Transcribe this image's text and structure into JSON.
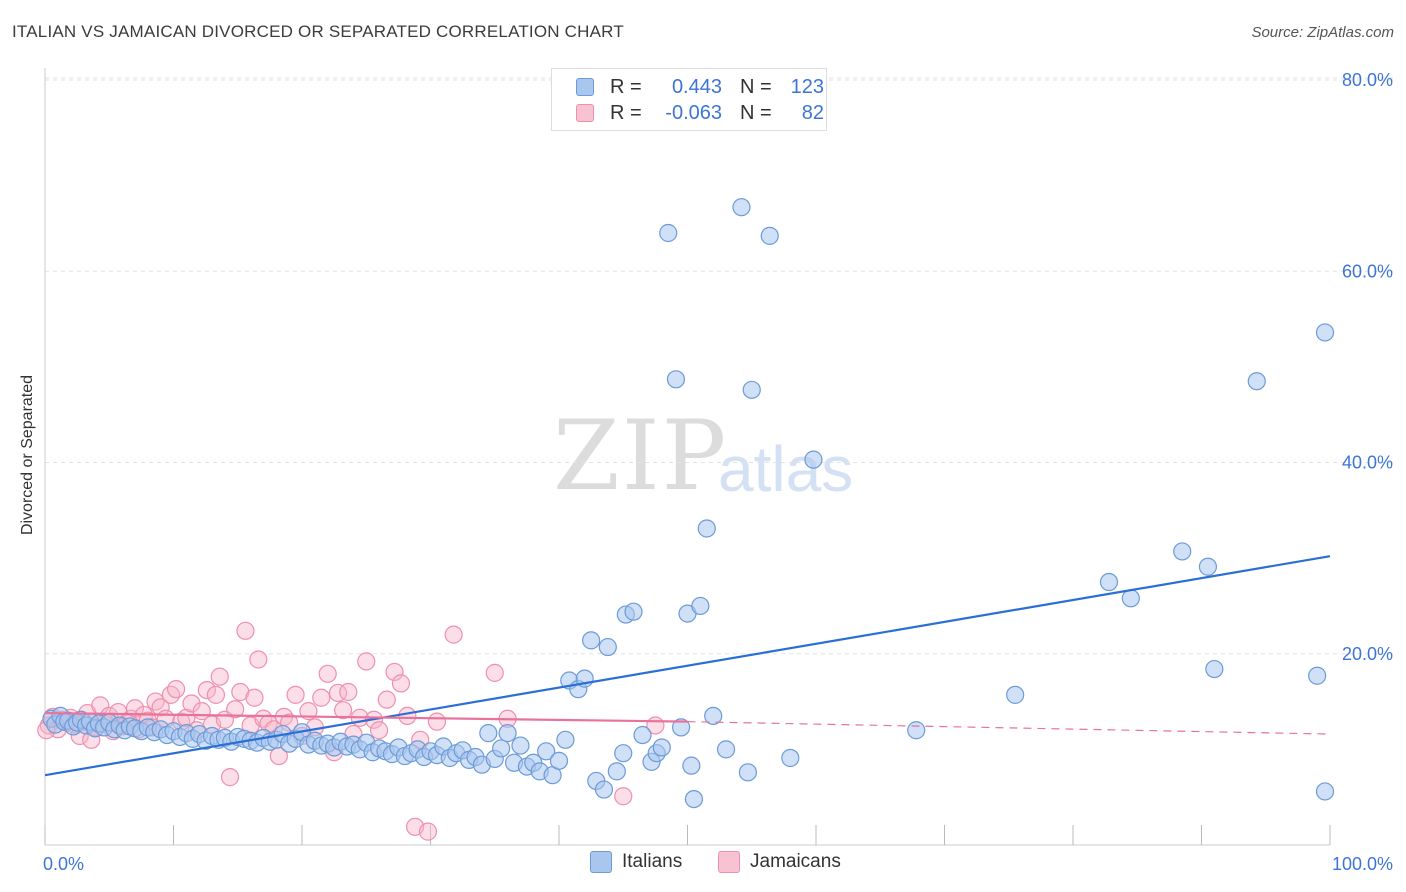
{
  "title": "ITALIAN VS JAMAICAN DIVORCED OR SEPARATED CORRELATION CHART",
  "source": "Source: ZipAtlas.com",
  "watermark": {
    "zip": "ZIP",
    "atlas": "atlas"
  },
  "legend_top": {
    "rows": [
      {
        "r_label": "R =",
        "r_value": "0.443",
        "n_label": "N =",
        "n_value": "123"
      },
      {
        "r_label": "R =",
        "r_value": "-0.063",
        "n_label": "N =",
        "n_value": "82"
      }
    ]
  },
  "legend_bottom": {
    "italians": "Italians",
    "jamaicans": "Jamaicans"
  },
  "colors": {
    "italians_fill": "#a9c6ee",
    "italians_stroke": "#6c9bd8",
    "italians_line": "#2b6fd6",
    "jamaicans_fill": "#f7b6ca",
    "jamaicans_stroke": "#ef8fae",
    "jamaicans_line": "#e8729b",
    "tick_label": "#3d75d6",
    "grid": "#e2e2e2"
  },
  "chart_data": {
    "type": "scatter",
    "title": "ITALIAN VS JAMAICAN DIVORCED OR SEPARATED CORRELATION CHART",
    "xlabel": "",
    "ylabel": "Divorced or Separated",
    "xlim": [
      0,
      100
    ],
    "ylim": [
      0,
      80
    ],
    "x_tick_labels": [
      "0.0%",
      "100.0%"
    ],
    "y_ticks": [
      20,
      40,
      60,
      80
    ],
    "y_tick_labels": [
      "20.0%",
      "40.0%",
      "60.0%",
      "80.0%"
    ],
    "grid": true,
    "legend": "top-center",
    "series": [
      {
        "name": "Italians",
        "r": 0.443,
        "n": 123,
        "trend": {
          "x": [
            0,
            100
          ],
          "y": [
            7.3,
            30.2
          ]
        },
        "points": [
          [
            0.5,
            13.2
          ],
          [
            0.8,
            12.6
          ],
          [
            1.2,
            13.5
          ],
          [
            1.5,
            12.9
          ],
          [
            1.8,
            13.0
          ],
          [
            2.2,
            12.4
          ],
          [
            2.5,
            12.8
          ],
          [
            2.8,
            13.1
          ],
          [
            3.2,
            12.5
          ],
          [
            3.5,
            12.9
          ],
          [
            3.9,
            12.2
          ],
          [
            4.2,
            12.7
          ],
          [
            4.6,
            12.3
          ],
          [
            5.0,
            12.8
          ],
          [
            5.4,
            12.1
          ],
          [
            5.8,
            12.5
          ],
          [
            6.2,
            12.0
          ],
          [
            6.6,
            12.4
          ],
          [
            7.0,
            12.2
          ],
          [
            7.5,
            11.9
          ],
          [
            8.0,
            12.3
          ],
          [
            8.5,
            11.8
          ],
          [
            9.0,
            12.1
          ],
          [
            9.5,
            11.5
          ],
          [
            10.0,
            11.9
          ],
          [
            10.5,
            11.3
          ],
          [
            11.0,
            11.7
          ],
          [
            11.5,
            11.1
          ],
          [
            12.0,
            11.6
          ],
          [
            12.5,
            10.9
          ],
          [
            13.0,
            11.4
          ],
          [
            13.5,
            11.0
          ],
          [
            14.0,
            11.2
          ],
          [
            14.5,
            10.8
          ],
          [
            15.0,
            11.3
          ],
          [
            15.5,
            11.1
          ],
          [
            16.0,
            10.9
          ],
          [
            16.5,
            10.7
          ],
          [
            17.0,
            11.2
          ],
          [
            17.5,
            10.8
          ],
          [
            18.0,
            11.0
          ],
          [
            18.5,
            11.6
          ],
          [
            19.0,
            10.6
          ],
          [
            19.5,
            11.1
          ],
          [
            20.0,
            11.8
          ],
          [
            20.5,
            10.5
          ],
          [
            21.0,
            10.9
          ],
          [
            21.5,
            10.4
          ],
          [
            22.0,
            10.6
          ],
          [
            22.5,
            10.2
          ],
          [
            23.0,
            10.8
          ],
          [
            23.5,
            10.3
          ],
          [
            24.0,
            10.5
          ],
          [
            24.5,
            10.0
          ],
          [
            25.0,
            10.7
          ],
          [
            25.5,
            9.7
          ],
          [
            26.0,
            10.1
          ],
          [
            26.5,
            9.8
          ],
          [
            27.0,
            9.5
          ],
          [
            27.5,
            10.2
          ],
          [
            28.0,
            9.3
          ],
          [
            28.5,
            9.6
          ],
          [
            29.0,
            10.0
          ],
          [
            29.5,
            9.2
          ],
          [
            30.0,
            9.8
          ],
          [
            30.5,
            9.4
          ],
          [
            31.0,
            10.3
          ],
          [
            31.5,
            9.1
          ],
          [
            32.0,
            9.6
          ],
          [
            32.5,
            9.9
          ],
          [
            33.0,
            8.9
          ],
          [
            33.5,
            9.2
          ],
          [
            34.0,
            8.4
          ],
          [
            34.5,
            11.7
          ],
          [
            35.0,
            9.0
          ],
          [
            35.5,
            10.1
          ],
          [
            36.0,
            11.7
          ],
          [
            36.5,
            8.6
          ],
          [
            37.0,
            10.4
          ],
          [
            37.5,
            8.2
          ],
          [
            38.0,
            8.6
          ],
          [
            38.5,
            7.7
          ],
          [
            39.0,
            9.8
          ],
          [
            39.5,
            7.3
          ],
          [
            40.0,
            8.8
          ],
          [
            40.5,
            11.0
          ],
          [
            40.8,
            17.2
          ],
          [
            41.5,
            16.3
          ],
          [
            42.0,
            17.4
          ],
          [
            42.5,
            21.4
          ],
          [
            42.9,
            6.7
          ],
          [
            43.5,
            5.8
          ],
          [
            43.8,
            20.7
          ],
          [
            44.5,
            7.7
          ],
          [
            45.0,
            9.6
          ],
          [
            45.2,
            24.1
          ],
          [
            45.8,
            24.4
          ],
          [
            46.5,
            11.5
          ],
          [
            47.2,
            8.7
          ],
          [
            47.6,
            9.6
          ],
          [
            48.0,
            10.2
          ],
          [
            48.5,
            64.0
          ],
          [
            49.1,
            48.7
          ],
          [
            49.5,
            12.3
          ],
          [
            50.0,
            24.2
          ],
          [
            50.5,
            4.8
          ],
          [
            50.3,
            8.3
          ],
          [
            51.0,
            25.0
          ],
          [
            51.5,
            33.1
          ],
          [
            52.0,
            13.5
          ],
          [
            53.0,
            10.0
          ],
          [
            54.2,
            66.7
          ],
          [
            54.7,
            7.6
          ],
          [
            55.0,
            47.6
          ],
          [
            56.4,
            63.7
          ],
          [
            58.0,
            9.1
          ],
          [
            59.8,
            40.3
          ],
          [
            67.8,
            12.0
          ],
          [
            75.5,
            15.7
          ],
          [
            82.8,
            27.5
          ],
          [
            84.5,
            25.8
          ],
          [
            88.5,
            30.7
          ],
          [
            90.5,
            29.1
          ],
          [
            91.0,
            18.4
          ],
          [
            94.3,
            48.5
          ],
          [
            99.0,
            17.7
          ],
          [
            101.5,
            53.6
          ],
          [
            102.5,
            5.6
          ]
        ]
      },
      {
        "name": "Jamaicans",
        "r": -0.063,
        "n": 82,
        "trend": {
          "x": [
            0,
            50
          ],
          "y": [
            13.8,
            12.9
          ],
          "dashed_to": [
            100,
            11.6
          ]
        },
        "points": [
          [
            0.3,
            12.5
          ],
          [
            0.6,
            13.4
          ],
          [
            1.0,
            12.1
          ],
          [
            1.3,
            13.1
          ],
          [
            1.7,
            12.8
          ],
          [
            2.0,
            13.3
          ],
          [
            2.3,
            12.6
          ],
          [
            2.7,
            11.4
          ],
          [
            3.0,
            12.9
          ],
          [
            3.3,
            13.8
          ],
          [
            3.6,
            11.0
          ],
          [
            4.0,
            12.3
          ],
          [
            4.3,
            14.6
          ],
          [
            4.6,
            12.7
          ],
          [
            5.0,
            13.5
          ],
          [
            5.3,
            11.9
          ],
          [
            5.7,
            13.9
          ],
          [
            6.0,
            12.4
          ],
          [
            6.4,
            12.8
          ],
          [
            6.7,
            13.2
          ],
          [
            7.0,
            14.3
          ],
          [
            7.3,
            12.1
          ],
          [
            7.7,
            13.6
          ],
          [
            8.0,
            13.0
          ],
          [
            8.3,
            12.3
          ],
          [
            8.6,
            15.0
          ],
          [
            9.0,
            14.4
          ],
          [
            9.4,
            13.2
          ],
          [
            9.8,
            15.7
          ],
          [
            10.2,
            16.3
          ],
          [
            10.6,
            12.9
          ],
          [
            11.0,
            13.3
          ],
          [
            11.4,
            14.8
          ],
          [
            11.8,
            12.0
          ],
          [
            12.2,
            14.0
          ],
          [
            12.6,
            16.2
          ],
          [
            13.0,
            12.6
          ],
          [
            13.3,
            15.7
          ],
          [
            13.6,
            17.6
          ],
          [
            14.0,
            13.1
          ],
          [
            14.4,
            7.1
          ],
          [
            14.8,
            14.2
          ],
          [
            15.2,
            16.0
          ],
          [
            15.6,
            22.4
          ],
          [
            16.0,
            12.5
          ],
          [
            16.3,
            15.4
          ],
          [
            16.6,
            19.4
          ],
          [
            17.0,
            13.2
          ],
          [
            17.4,
            12.7
          ],
          [
            17.8,
            12.1
          ],
          [
            18.2,
            9.3
          ],
          [
            18.6,
            13.4
          ],
          [
            19.0,
            12.8
          ],
          [
            19.5,
            15.7
          ],
          [
            20.0,
            11.4
          ],
          [
            20.5,
            14.0
          ],
          [
            21.0,
            12.3
          ],
          [
            21.5,
            15.4
          ],
          [
            22.0,
            17.9
          ],
          [
            22.5,
            9.7
          ],
          [
            22.8,
            15.9
          ],
          [
            23.2,
            14.1
          ],
          [
            23.6,
            16.0
          ],
          [
            24.0,
            11.6
          ],
          [
            24.5,
            13.3
          ],
          [
            25.0,
            19.2
          ],
          [
            25.6,
            13.1
          ],
          [
            26.0,
            12.0
          ],
          [
            26.6,
            15.2
          ],
          [
            27.2,
            18.1
          ],
          [
            27.7,
            16.9
          ],
          [
            28.2,
            13.5
          ],
          [
            28.8,
            1.9
          ],
          [
            29.2,
            11.0
          ],
          [
            29.8,
            1.4
          ],
          [
            30.5,
            12.9
          ],
          [
            31.8,
            22.0
          ],
          [
            35.0,
            18.0
          ],
          [
            36.0,
            13.2
          ],
          [
            45.0,
            5.1
          ],
          [
            47.5,
            12.5
          ],
          [
            0.1,
            12.0
          ]
        ]
      }
    ]
  }
}
